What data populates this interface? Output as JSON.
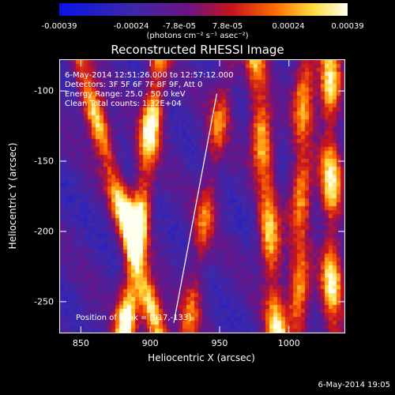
{
  "colorbar": {
    "ticks": [
      "-0.00039",
      "-0.00024",
      "-7.8e-05",
      "7.8e-05",
      "0.00024",
      "0.00039"
    ],
    "units": "(photons cm⁻² s⁻¹ asec⁻²)",
    "range": [
      -0.00039,
      0.00039
    ]
  },
  "chart_data": {
    "type": "heatmap",
    "title": "Reconstructed RHESSI Image",
    "xlabel": "Heliocentric X (arcsec)",
    "ylabel": "Heliocentric Y (arcsec)",
    "xlim": [
      835,
      1040
    ],
    "ylim": [
      -272,
      -78
    ],
    "xticks": [
      850,
      900,
      950,
      1000
    ],
    "yticks": [
      -100,
      -150,
      -200,
      -250
    ],
    "colormap": "blue-purple-red-yellow-white",
    "stripes": [
      {
        "x_top": 848,
        "x_bottom": 905,
        "peak": 0.95
      },
      {
        "x_top": 905,
        "x_bottom": 880,
        "peak": 1.0
      },
      {
        "x_top": 955,
        "x_bottom": 925,
        "peak": 0.55
      },
      {
        "x_top": 975,
        "x_bottom": 990,
        "peak": 0.85
      },
      {
        "x_top": 1010,
        "x_bottom": 1005,
        "peak": 0.75
      },
      {
        "x_top": 1028,
        "x_bottom": 1030,
        "peak": 0.85
      }
    ],
    "annotations": {
      "time": "6-May-2014 12:51:26.000 to 12:57:12.000",
      "detectors": "Detectors: 3F 5F 6F 7F 8F 9F, Att 0",
      "energy": "Energy Range: 25.0 - 50.0 keV",
      "method": "Clean    Total counts: 1.32E+04",
      "peak": "Position of Peak = [917,-133]"
    },
    "peak_line": {
      "from": [
        948,
        -102
      ],
      "to": [
        917,
        -265
      ]
    }
  },
  "footer": "6-May-2014 19:05"
}
